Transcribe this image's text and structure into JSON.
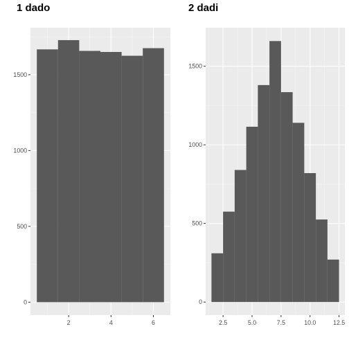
{
  "chart_data": [
    {
      "type": "bar",
      "title": "1 dado",
      "bins": [
        {
          "x0": 0.5,
          "x1": 1.5,
          "count": 1667
        },
        {
          "x0": 1.5,
          "x1": 2.5,
          "count": 1728
        },
        {
          "x0": 2.5,
          "x1": 3.5,
          "count": 1657
        },
        {
          "x0": 3.5,
          "x1": 4.5,
          "count": 1650
        },
        {
          "x0": 4.5,
          "x1": 5.5,
          "count": 1625
        },
        {
          "x0": 5.5,
          "x1": 6.5,
          "count": 1675
        }
      ],
      "xlim": [
        0.2,
        6.8
      ],
      "ylim": [
        -85,
        1810
      ],
      "xticks": [
        2,
        4,
        6
      ],
      "xtick_labels": [
        "2",
        "4",
        "6"
      ],
      "yticks": [
        0,
        500,
        1000,
        1500
      ],
      "ytick_labels": [
        "0",
        "500",
        "1000",
        "1500"
      ],
      "xlabel": "",
      "ylabel": "",
      "bar_color": "#595959",
      "panel_bg": "#ebebeb",
      "grid": true
    },
    {
      "type": "bar",
      "title": "2 dadi",
      "bins": [
        {
          "x0": 1.5,
          "x1": 2.5,
          "count": 310
        },
        {
          "x0": 2.5,
          "x1": 3.5,
          "count": 575
        },
        {
          "x0": 3.5,
          "x1": 4.5,
          "count": 840
        },
        {
          "x0": 4.5,
          "x1": 5.5,
          "count": 1115
        },
        {
          "x0": 5.5,
          "x1": 6.5,
          "count": 1380
        },
        {
          "x0": 6.5,
          "x1": 7.5,
          "count": 1660
        },
        {
          "x0": 7.5,
          "x1": 8.5,
          "count": 1335
        },
        {
          "x0": 8.5,
          "x1": 9.5,
          "count": 1140
        },
        {
          "x0": 9.5,
          "x1": 10.5,
          "count": 820
        },
        {
          "x0": 10.5,
          "x1": 11.5,
          "count": 525
        },
        {
          "x0": 11.5,
          "x1": 12.5,
          "count": 270
        }
      ],
      "xlim": [
        1.0,
        13.0
      ],
      "ylim": [
        -83,
        1745
      ],
      "xticks": [
        2.5,
        5.0,
        7.5,
        10.0,
        12.5
      ],
      "xtick_labels": [
        "2.5",
        "5.0",
        "7.5",
        "10.0",
        "12.5"
      ],
      "yticks": [
        0,
        500,
        1000,
        1500
      ],
      "ytick_labels": [
        "0",
        "500",
        "1000",
        "1500"
      ],
      "xlabel": "",
      "ylabel": "",
      "bar_color": "#595959",
      "panel_bg": "#ebebeb",
      "grid": true
    }
  ]
}
